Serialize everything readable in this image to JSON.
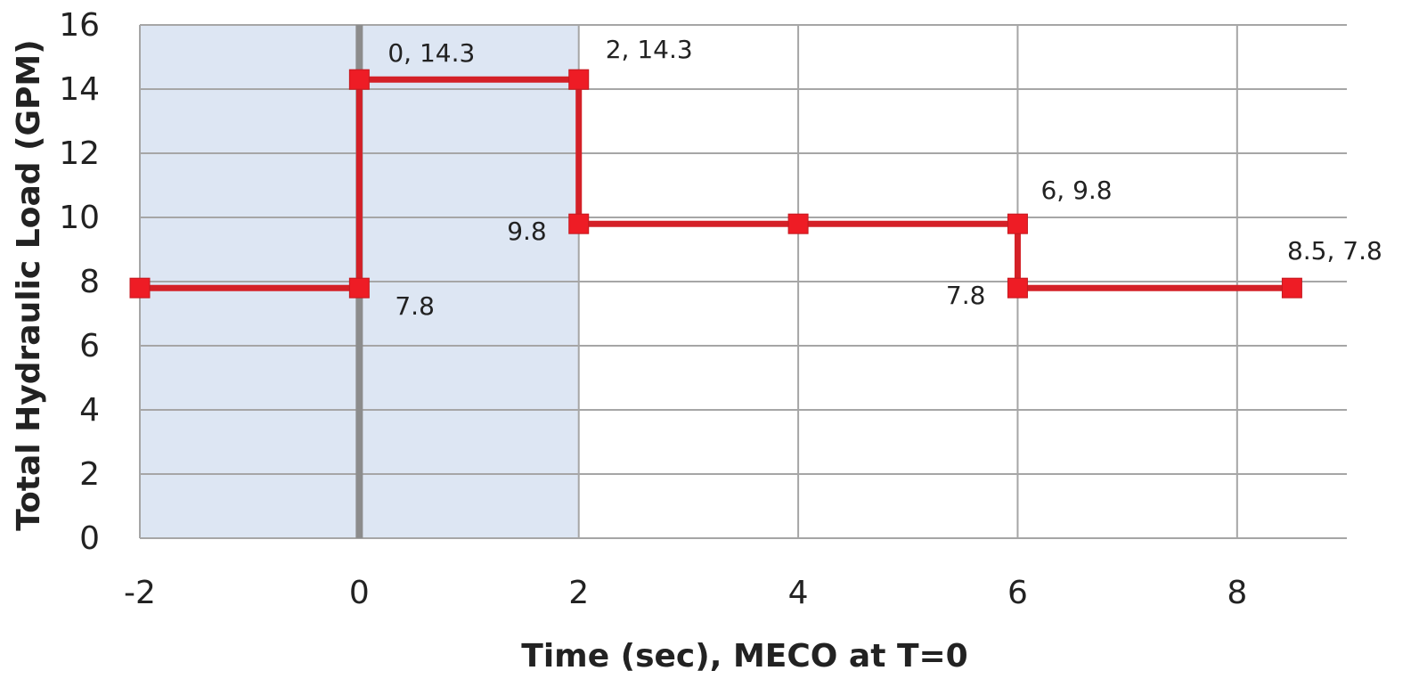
{
  "chart_data": {
    "type": "line",
    "xlabel": "Time (sec), MECO at T=0",
    "ylabel": "Total Hydraulic Load (GPM)",
    "xlim": [
      -2,
      9
    ],
    "ylim": [
      0,
      16
    ],
    "x_ticks": [
      -2,
      0,
      2,
      4,
      6,
      8
    ],
    "x_tick_labels": [
      "-2",
      "0",
      "2",
      "4",
      "6",
      "8"
    ],
    "y_ticks": [
      0,
      2,
      4,
      6,
      8,
      10,
      12,
      14,
      16
    ],
    "y_tick_labels": [
      "0",
      "2",
      "4",
      "6",
      "8",
      "10",
      "12",
      "14",
      "16"
    ],
    "grid": true,
    "shaded_region": {
      "x_from": -2,
      "x_to": 2
    },
    "reference_line_x": 0,
    "series": [
      {
        "x": [
          -2,
          0,
          0,
          2,
          2,
          4,
          6,
          6,
          8.5
        ],
        "y": [
          7.8,
          7.8,
          14.3,
          14.3,
          9.8,
          9.8,
          9.8,
          7.8,
          7.8
        ]
      }
    ],
    "annotations": [
      {
        "text": "0, 14.3",
        "x": 0,
        "y": 14.3
      },
      {
        "text": "2, 14.3",
        "x": 2,
        "y": 14.3
      },
      {
        "text": "9.8",
        "x": 2,
        "y": 9.8
      },
      {
        "text": "7.8",
        "x": 0,
        "y": 7.8
      },
      {
        "text": "6, 9.8",
        "x": 6,
        "y": 9.8
      },
      {
        "text": "7.8",
        "x": 6,
        "y": 7.8
      },
      {
        "text": "8.5, 7.8",
        "x": 8.5,
        "y": 7.8
      }
    ],
    "colors": {
      "series": "#d42027",
      "marker": "#ee1c25",
      "shade": "#dde6f3",
      "grid": "#a6a6a6",
      "zero_line": "#8c8c8c"
    }
  }
}
